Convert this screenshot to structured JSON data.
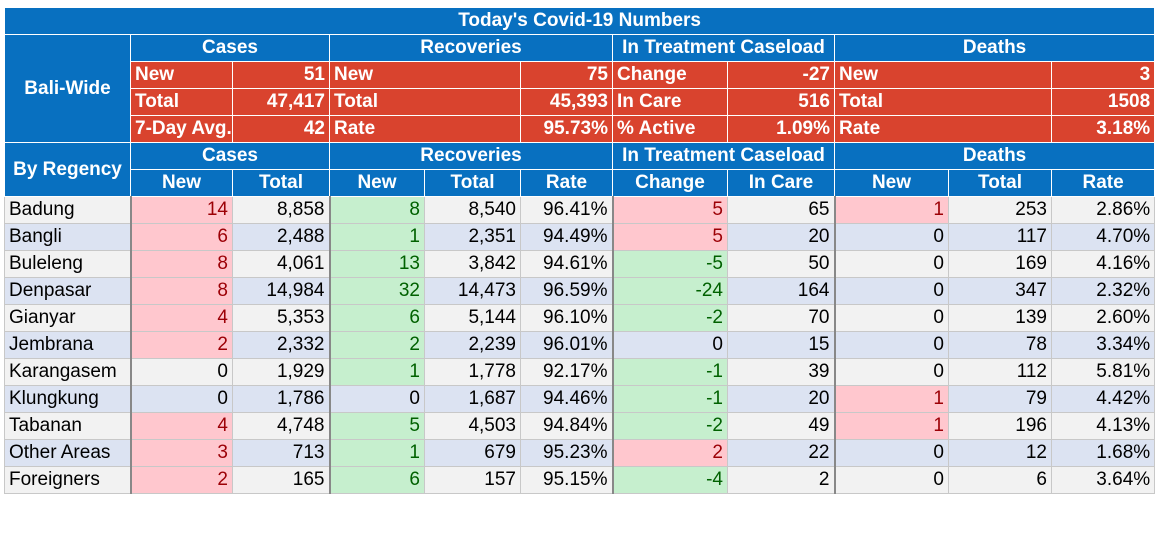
{
  "title": "Today's Covid-19 Numbers",
  "bali_wide": {
    "label": "Bali-Wide",
    "groups": [
      "Cases",
      "Recoveries",
      "In Treatment Caseload",
      "Deaths"
    ],
    "rows": [
      {
        "cases_label": "New",
        "cases_value": "51",
        "rec_label": "New",
        "rec_value": "75",
        "treat_label": "Change",
        "treat_value": "-27",
        "deaths_label": "New",
        "deaths_value": "3"
      },
      {
        "cases_label": "Total",
        "cases_value": "47,417",
        "rec_label": "Total",
        "rec_value": "45,393",
        "treat_label": "In Care",
        "treat_value": "516",
        "deaths_label": "Total",
        "deaths_value": "1508"
      },
      {
        "cases_label": "7-Day Avg.",
        "cases_value": "42",
        "rec_label": "Rate",
        "rec_value": "95.73%",
        "treat_label": "% Active",
        "treat_value": "1.09%",
        "deaths_label": "Rate",
        "deaths_value": "3.18%"
      }
    ]
  },
  "by_regency": {
    "label": "By Regency",
    "groups": [
      "Cases",
      "Recoveries",
      "In Treatment Caseload",
      "Deaths"
    ],
    "columns": [
      "New",
      "Total",
      "New",
      "Total",
      "Rate",
      "Change",
      "In Care",
      "New",
      "Total",
      "Rate"
    ],
    "rows": [
      {
        "name": "Badung",
        "cells": [
          "14",
          "8,858",
          "8",
          "8,540",
          "96.41%",
          "5",
          "65",
          "1",
          "253",
          "2.86%"
        ]
      },
      {
        "name": "Bangli",
        "cells": [
          "6",
          "2,488",
          "1",
          "2,351",
          "94.49%",
          "5",
          "20",
          "0",
          "117",
          "4.70%"
        ]
      },
      {
        "name": "Buleleng",
        "cells": [
          "8",
          "4,061",
          "13",
          "3,842",
          "94.61%",
          "-5",
          "50",
          "0",
          "169",
          "4.16%"
        ]
      },
      {
        "name": "Denpasar",
        "cells": [
          "8",
          "14,984",
          "32",
          "14,473",
          "96.59%",
          "-24",
          "164",
          "0",
          "347",
          "2.32%"
        ]
      },
      {
        "name": "Gianyar",
        "cells": [
          "4",
          "5,353",
          "6",
          "5,144",
          "96.10%",
          "-2",
          "70",
          "0",
          "139",
          "2.60%"
        ]
      },
      {
        "name": "Jembrana",
        "cells": [
          "2",
          "2,332",
          "2",
          "2,239",
          "96.01%",
          "0",
          "15",
          "0",
          "78",
          "3.34%"
        ]
      },
      {
        "name": "Karangasem",
        "cells": [
          "0",
          "1,929",
          "1",
          "1,778",
          "92.17%",
          "-1",
          "39",
          "0",
          "112",
          "5.81%"
        ]
      },
      {
        "name": "Klungkung",
        "cells": [
          "0",
          "1,786",
          "0",
          "1,687",
          "94.46%",
          "-1",
          "20",
          "1",
          "79",
          "4.42%"
        ]
      },
      {
        "name": "Tabanan",
        "cells": [
          "4",
          "4,748",
          "5",
          "4,503",
          "94.84%",
          "-2",
          "49",
          "1",
          "196",
          "4.13%"
        ]
      },
      {
        "name": "Other Areas",
        "cells": [
          "3",
          "713",
          "1",
          "679",
          "95.23%",
          "2",
          "22",
          "0",
          "12",
          "1.68%"
        ]
      },
      {
        "name": "Foreigners",
        "cells": [
          "2",
          "165",
          "6",
          "157",
          "95.15%",
          "-4",
          "2",
          "0",
          "6",
          "3.64%"
        ]
      }
    ]
  },
  "highlight_colors": {
    "pink": "#FFC7CE",
    "green": "#C6EFCE",
    "header_blue": "#0870C0",
    "summary_red": "#D9432E"
  }
}
